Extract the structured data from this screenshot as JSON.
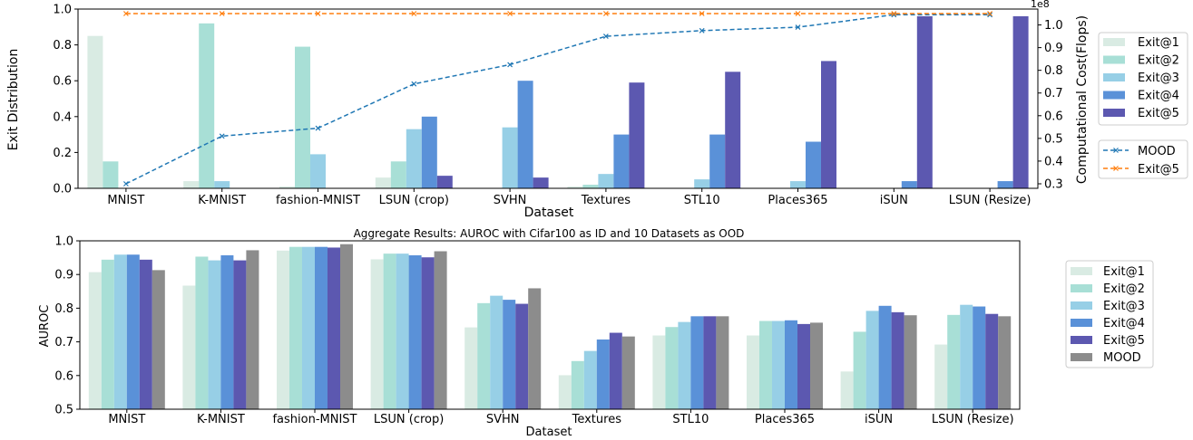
{
  "colors": {
    "Exit@1": "#d9ebe3",
    "Exit@2": "#a8dfd6",
    "Exit@3": "#97cfe6",
    "Exit@4": "#5a91d8",
    "Exit@5": "#5c58b0",
    "MOOD": "#8c8c8c",
    "mood_line": "#1f77b4",
    "exit5_line": "#ff7f0e"
  },
  "chart_data": [
    {
      "type": "bar",
      "title": "",
      "xlabel": "Dataset",
      "ylabel": "Exit Distribution",
      "y2label": "Computational Cost(Flops)",
      "y2_offset_text": "1e8",
      "ylim": [
        0,
        1.0
      ],
      "y2lim": [
        0.28,
        1.07
      ],
      "yticks": [
        "0.0",
        "0.2",
        "0.4",
        "0.6",
        "0.8",
        "1.0"
      ],
      "y2ticks": [
        "0.3",
        "0.4",
        "0.5",
        "0.6",
        "0.7",
        "0.8",
        "0.9",
        "1.0"
      ],
      "categories": [
        "MNIST",
        "K-MNIST",
        "fashion-MNIST",
        "LSUN (crop)",
        "SVHN",
        "Textures",
        "STL10",
        "Places365",
        "iSUN",
        "LSUN (Resize)"
      ],
      "series": [
        {
          "name": "Exit@1",
          "values": [
            0.85,
            0.04,
            0.01,
            0.06,
            0.0,
            0.01,
            0.0,
            0.0,
            0.0,
            0.0
          ]
        },
        {
          "name": "Exit@2",
          "values": [
            0.15,
            0.92,
            0.79,
            0.15,
            0.0,
            0.02,
            0.0,
            0.0,
            0.0,
            0.0
          ]
        },
        {
          "name": "Exit@3",
          "values": [
            0.0,
            0.04,
            0.19,
            0.33,
            0.34,
            0.08,
            0.05,
            0.04,
            0.0,
            0.0
          ]
        },
        {
          "name": "Exit@4",
          "values": [
            0.0,
            0.0,
            0.0,
            0.4,
            0.6,
            0.3,
            0.3,
            0.26,
            0.04,
            0.04
          ]
        },
        {
          "name": "Exit@5",
          "values": [
            0.0,
            0.0,
            0.0,
            0.07,
            0.06,
            0.59,
            0.65,
            0.71,
            0.96,
            0.96
          ]
        }
      ],
      "lines": [
        {
          "name": "MOOD",
          "axis": "y2",
          "style": "dashed",
          "marker": "x",
          "values": [
            0.3,
            0.51,
            0.545,
            0.74,
            0.825,
            0.95,
            0.975,
            0.99,
            1.045,
            1.045
          ]
        },
        {
          "name": "Exit@5",
          "axis": "y2",
          "style": "dashed",
          "marker": "x",
          "values": [
            1.05,
            1.05,
            1.05,
            1.05,
            1.05,
            1.05,
            1.05,
            1.05,
            1.05,
            1.05
          ]
        }
      ],
      "legends": [
        {
          "placement": "right-top",
          "entries": [
            "Exit@1",
            "Exit@2",
            "Exit@3",
            "Exit@4",
            "Exit@5"
          ]
        },
        {
          "placement": "right-bottom",
          "entries": [
            "MOOD",
            "Exit@5"
          ]
        }
      ]
    },
    {
      "type": "bar",
      "title": "Aggregate Results: AUROC with Cifar100 as ID and 10 Datasets as OOD",
      "xlabel": "Dataset",
      "ylabel": "AUROC",
      "ylim": [
        0.5,
        1.0
      ],
      "yticks": [
        "0.5",
        "0.6",
        "0.7",
        "0.8",
        "0.9",
        "1.0"
      ],
      "categories": [
        "MNIST",
        "K-MNIST",
        "fashion-MNIST",
        "LSUN (crop)",
        "SVHN",
        "Textures",
        "STL10",
        "Places365",
        "iSUN",
        "LSUN (Resize)"
      ],
      "series": [
        {
          "name": "Exit@1",
          "values": [
            0.907,
            0.867,
            0.971,
            0.945,
            0.743,
            0.601,
            0.719,
            0.719,
            0.612,
            0.692
          ]
        },
        {
          "name": "Exit@2",
          "values": [
            0.944,
            0.953,
            0.982,
            0.962,
            0.815,
            0.643,
            0.744,
            0.762,
            0.73,
            0.78
          ]
        },
        {
          "name": "Exit@3",
          "values": [
            0.959,
            0.942,
            0.982,
            0.962,
            0.837,
            0.673,
            0.759,
            0.762,
            0.792,
            0.81
          ]
        },
        {
          "name": "Exit@4",
          "values": [
            0.959,
            0.957,
            0.982,
            0.957,
            0.825,
            0.707,
            0.776,
            0.764,
            0.807,
            0.805
          ]
        },
        {
          "name": "Exit@5",
          "values": [
            0.944,
            0.942,
            0.98,
            0.951,
            0.813,
            0.727,
            0.776,
            0.753,
            0.788,
            0.783
          ]
        },
        {
          "name": "MOOD",
          "values": [
            0.913,
            0.972,
            0.99,
            0.969,
            0.859,
            0.716,
            0.776,
            0.757,
            0.779,
            0.776
          ]
        }
      ],
      "legends": [
        {
          "placement": "right",
          "entries": [
            "Exit@1",
            "Exit@2",
            "Exit@3",
            "Exit@4",
            "Exit@5",
            "MOOD"
          ]
        }
      ]
    }
  ]
}
